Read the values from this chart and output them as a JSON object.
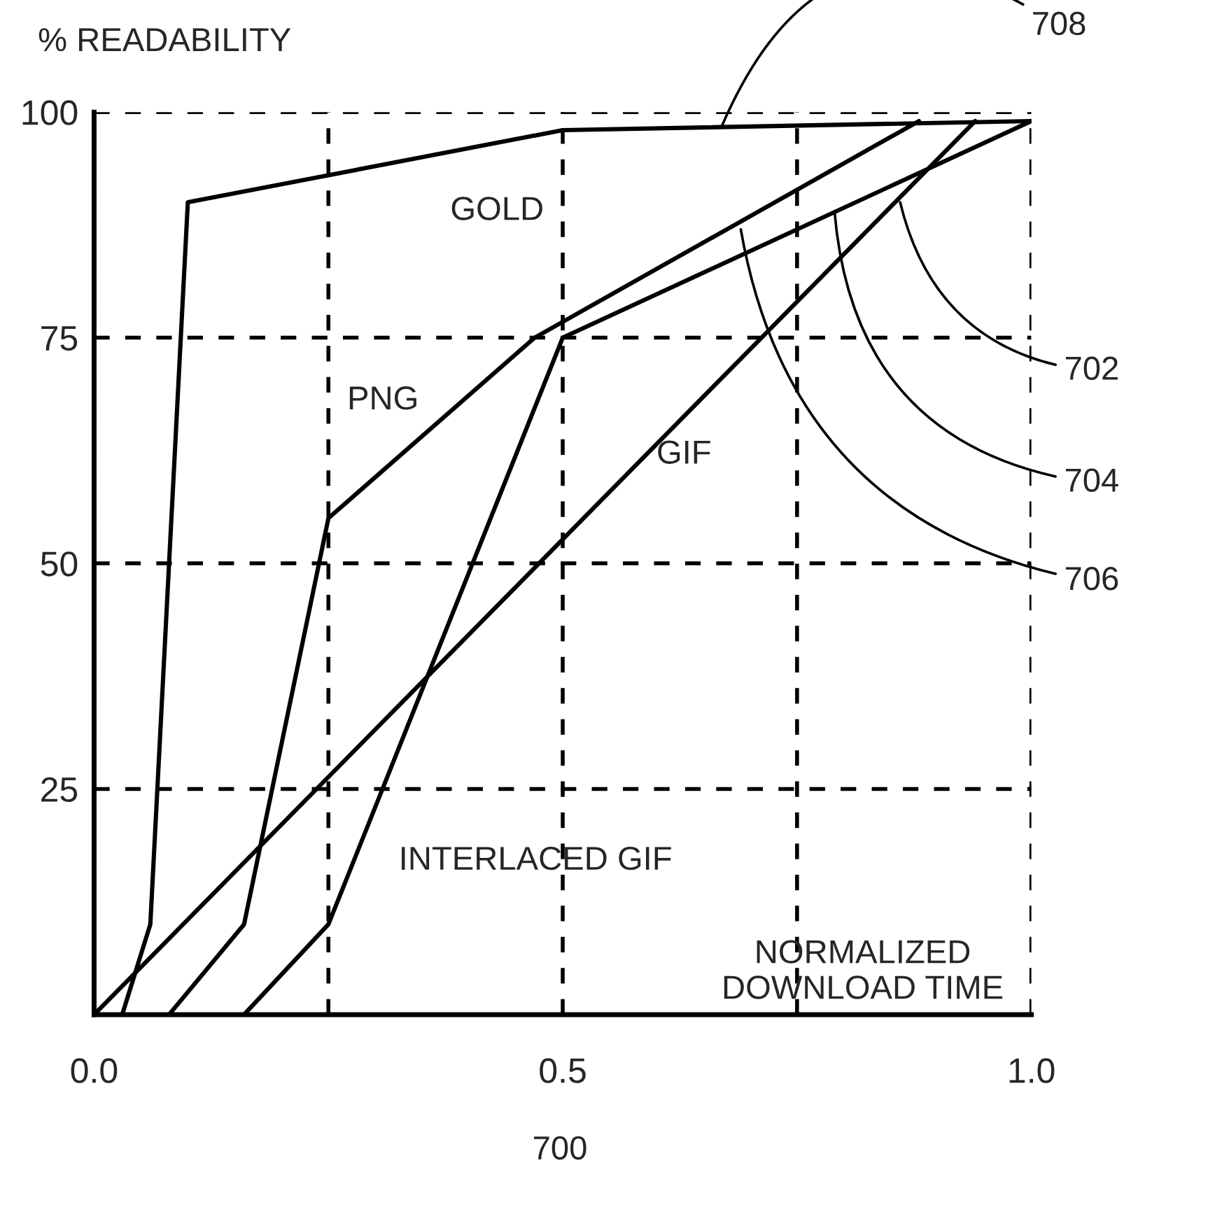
{
  "chart_data": {
    "type": "line",
    "ylabel": "% READABILITY",
    "xlabel": "NORMALIZED\nDOWNLOAD TIME",
    "xlim": [
      0,
      1
    ],
    "ylim": [
      0,
      100
    ],
    "xticks": [
      {
        "value": 0,
        "label": "0.0"
      },
      {
        "value": 0.25,
        "label": null
      },
      {
        "value": 0.5,
        "label": "0.5"
      },
      {
        "value": 0.75,
        "label": null
      },
      {
        "value": 1,
        "label": "1.0"
      }
    ],
    "yticks": [
      {
        "value": 0,
        "label": null
      },
      25,
      50,
      75,
      100
    ],
    "grid": true,
    "series": [
      {
        "name": "GOLD",
        "color": "#000000",
        "x": [
          0.03,
          0.06,
          0.1,
          0.5,
          1.0
        ],
        "values": [
          0,
          10,
          90,
          98,
          99
        ]
      },
      {
        "name": "PNG",
        "color": "#000000",
        "x": [
          0.08,
          0.16,
          0.25,
          0.47,
          0.88
        ],
        "values": [
          0,
          10,
          55,
          75,
          99
        ]
      },
      {
        "name": "GIF",
        "color": "#000000",
        "x": [
          0.0,
          0.94
        ],
        "values": [
          0,
          99
        ]
      },
      {
        "name": "INTERLACED GIF",
        "color": "#000000",
        "x": [
          0.16,
          0.25,
          0.5,
          1.0
        ],
        "values": [
          0,
          10,
          75,
          99
        ]
      }
    ],
    "annotations": [
      {
        "text": "708",
        "x": 0.67,
        "y": 98.5
      },
      {
        "text": "702",
        "x": 0.86,
        "y": 90
      },
      {
        "text": "704",
        "x": 0.79,
        "y": 89
      },
      {
        "text": "706",
        "x": 0.69,
        "y": 87
      },
      "700"
    ]
  }
}
